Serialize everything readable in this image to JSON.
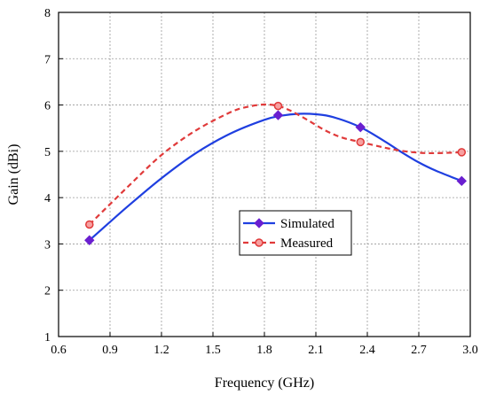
{
  "chart_data": {
    "type": "line",
    "xlabel": "Frequency (GHz)",
    "ylabel": "Gain (dBi)",
    "xlim": [
      0.6,
      3.0
    ],
    "ylim": [
      1,
      8
    ],
    "xticks": [
      "0.6",
      "0.9",
      "1.2",
      "1.5",
      "1.8",
      "2.1",
      "2.4",
      "2.7",
      "3.0"
    ],
    "yticks": [
      "1",
      "2",
      "3",
      "4",
      "5",
      "6",
      "7",
      "8"
    ],
    "grid": true,
    "legend_position": "center-right",
    "series": [
      {
        "name": "Simulated",
        "color": "#1f3fe0",
        "line_style": "solid",
        "marker": "diamond",
        "marker_color": "#6a1fd0",
        "points": [
          [
            0.78,
            3.08
          ],
          [
            1.88,
            5.78
          ],
          [
            2.36,
            5.52
          ],
          [
            2.95,
            4.36
          ]
        ],
        "curve": [
          [
            0.78,
            3.08
          ],
          [
            1.0,
            3.8
          ],
          [
            1.2,
            4.42
          ],
          [
            1.4,
            4.96
          ],
          [
            1.6,
            5.38
          ],
          [
            1.8,
            5.68
          ],
          [
            1.9,
            5.77
          ],
          [
            2.0,
            5.81
          ],
          [
            2.1,
            5.8
          ],
          [
            2.2,
            5.74
          ],
          [
            2.36,
            5.52
          ],
          [
            2.5,
            5.22
          ],
          [
            2.6,
            4.98
          ],
          [
            2.7,
            4.76
          ],
          [
            2.8,
            4.58
          ],
          [
            2.95,
            4.36
          ]
        ]
      },
      {
        "name": "Measured",
        "color": "#e03a3a",
        "line_style": "dashed",
        "marker": "circle",
        "marker_color": "#e03a3a",
        "points": [
          [
            0.78,
            3.42
          ],
          [
            1.88,
            5.98
          ],
          [
            2.36,
            5.2
          ],
          [
            2.95,
            4.98
          ]
        ],
        "curve": [
          [
            0.78,
            3.42
          ],
          [
            1.0,
            4.22
          ],
          [
            1.2,
            4.92
          ],
          [
            1.4,
            5.45
          ],
          [
            1.6,
            5.84
          ],
          [
            1.7,
            5.96
          ],
          [
            1.8,
            6.01
          ],
          [
            1.88,
            5.98
          ],
          [
            1.95,
            5.88
          ],
          [
            2.05,
            5.68
          ],
          [
            2.15,
            5.46
          ],
          [
            2.25,
            5.3
          ],
          [
            2.36,
            5.2
          ],
          [
            2.5,
            5.08
          ],
          [
            2.6,
            5.01
          ],
          [
            2.7,
            4.97
          ],
          [
            2.8,
            4.96
          ],
          [
            2.95,
            4.98
          ]
        ]
      }
    ]
  }
}
